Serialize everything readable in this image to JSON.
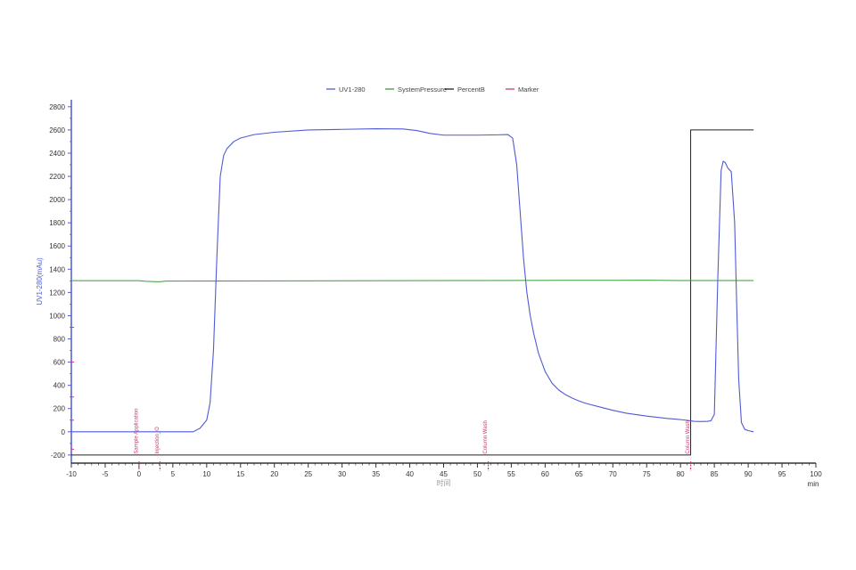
{
  "chart_data": {
    "type": "line",
    "xlabel": "时间",
    "x_unit": "min",
    "ylabel": "UV1-280(mAu)",
    "xlim": [
      -10,
      100
    ],
    "ylim": [
      -270,
      2860
    ],
    "x_ticks": [
      -10,
      -5,
      0,
      5,
      10,
      15,
      20,
      25,
      30,
      35,
      40,
      45,
      50,
      55,
      60,
      65,
      70,
      75,
      80,
      85,
      90,
      95,
      100
    ],
    "y_ticks": [
      -200,
      0,
      200,
      400,
      600,
      800,
      1000,
      1200,
      1400,
      1600,
      1800,
      2000,
      2200,
      2400,
      2600,
      2800
    ],
    "legend_position": "top-center",
    "grid": false,
    "series": [
      {
        "name": "UV1-280",
        "color": "#4f5bd5",
        "x": [
          -10,
          0,
          5,
          8,
          9,
          10,
          10.5,
          11,
          11.5,
          12,
          12.5,
          13,
          14,
          15,
          17,
          20,
          25,
          30,
          35,
          39,
          41,
          43,
          45,
          50,
          53,
          54.5,
          55.2,
          55.8,
          56.3,
          56.8,
          57.3,
          57.8,
          58.3,
          59,
          60,
          61,
          62,
          63,
          64,
          65,
          66,
          68,
          70,
          72,
          75,
          78,
          80,
          81.5,
          82,
          83,
          84,
          84.5,
          85,
          85.5,
          86,
          86.3,
          86.6,
          87,
          87.5,
          88,
          88.3,
          88.6,
          89,
          89.5,
          90,
          90.8
        ],
        "y": [
          0,
          0,
          0,
          0,
          30,
          100,
          250,
          700,
          1500,
          2200,
          2380,
          2440,
          2500,
          2530,
          2560,
          2580,
          2600,
          2605,
          2610,
          2608,
          2595,
          2570,
          2555,
          2555,
          2558,
          2560,
          2530,
          2300,
          1900,
          1500,
          1200,
          1000,
          850,
          680,
          520,
          420,
          360,
          320,
          290,
          265,
          245,
          215,
          185,
          160,
          135,
          115,
          105,
          95,
          90,
          88,
          90,
          95,
          150,
          1300,
          2250,
          2330,
          2320,
          2270,
          2240,
          1800,
          1100,
          450,
          80,
          20,
          10,
          0
        ]
      },
      {
        "name": "SystemPressure",
        "color": "#3a9a3a",
        "x": [
          -10,
          0,
          1,
          3,
          4,
          50,
          70,
          75,
          80,
          90.8
        ],
        "y": [
          1302,
          1302,
          1296,
          1292,
          1298,
          1303,
          1305,
          1306,
          1303,
          1303
        ]
      },
      {
        "name": "PercentB",
        "color": "#222222",
        "x": [
          -10,
          81.5,
          81.5,
          90.8
        ],
        "y": [
          -200,
          -200,
          2600,
          2600
        ]
      },
      {
        "name": "Marker",
        "color": "#cc3a7a",
        "x": [],
        "y": []
      }
    ],
    "markers": [
      {
        "x": 0,
        "label": "Sample Application"
      },
      {
        "x": 3.1,
        "label": "Injection_O"
      },
      {
        "x": 51.6,
        "label": "Column Wash"
      },
      {
        "x": 81.5,
        "label": "Column Wash"
      }
    ]
  }
}
